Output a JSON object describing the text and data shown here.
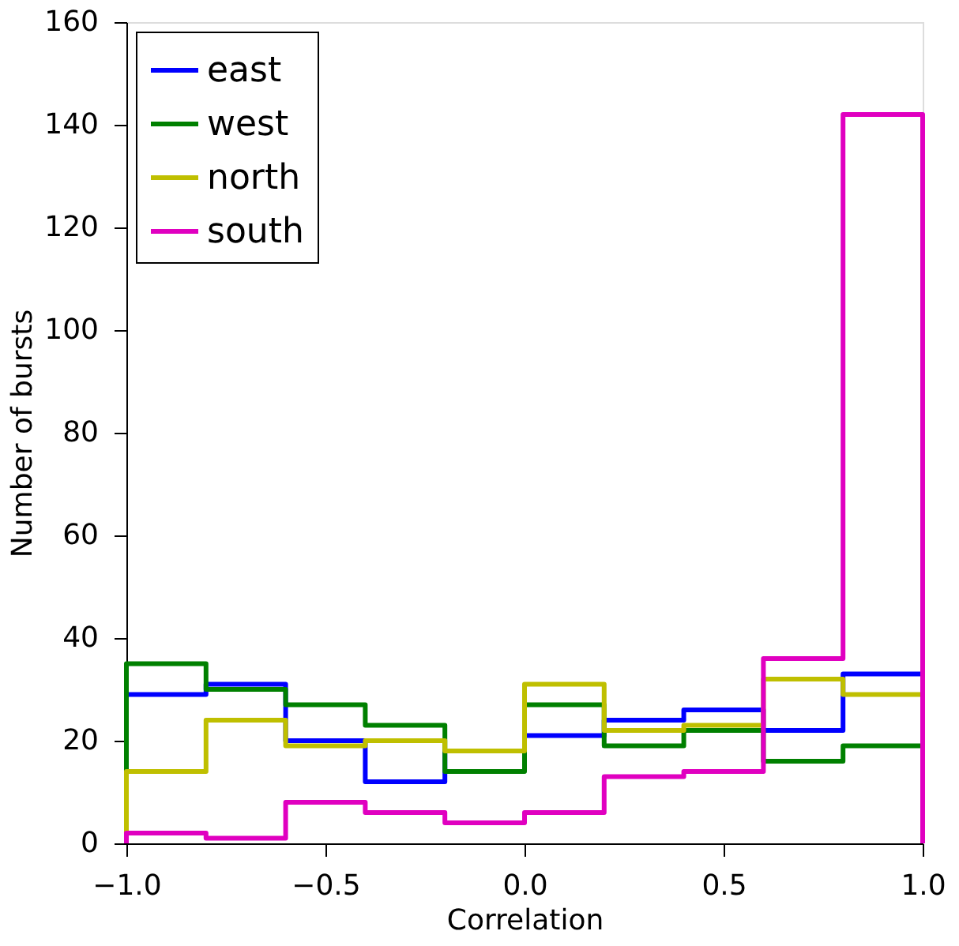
{
  "chart_data": {
    "type": "histogram",
    "xlabel": "Correlation",
    "ylabel": "Number of bursts",
    "bins": [
      -1.0,
      -0.8,
      -0.6,
      -0.4,
      -0.2,
      0.0,
      0.2,
      0.4,
      0.6,
      0.8,
      1.0
    ],
    "series": [
      {
        "name": "east",
        "color": "#0000ff",
        "values": [
          29,
          31,
          20,
          12,
          18,
          21,
          24,
          26,
          22,
          33
        ]
      },
      {
        "name": "west",
        "color": "#008000",
        "values": [
          35,
          30,
          27,
          23,
          14,
          27,
          19,
          22,
          16,
          19
        ]
      },
      {
        "name": "north",
        "color": "#bfbf00",
        "values": [
          14,
          24,
          19,
          20,
          18,
          31,
          22,
          23,
          32,
          29
        ]
      },
      {
        "name": "south",
        "color": "#e000c0",
        "values": [
          2,
          1,
          8,
          6,
          4,
          6,
          13,
          14,
          36,
          142
        ]
      }
    ],
    "xlim": [
      -1.0,
      1.0
    ],
    "ylim": [
      0,
      160
    ],
    "xticks": [
      {
        "value": -1.0,
        "label": "−1.0"
      },
      {
        "value": -0.5,
        "label": "−0.5"
      },
      {
        "value": 0.0,
        "label": "0.0"
      },
      {
        "value": 0.5,
        "label": "0.5"
      },
      {
        "value": 1.0,
        "label": "1.0"
      }
    ],
    "yticks": [
      0,
      20,
      40,
      60,
      80,
      100,
      120,
      140,
      160
    ],
    "legend": "top left",
    "grid": false
  }
}
